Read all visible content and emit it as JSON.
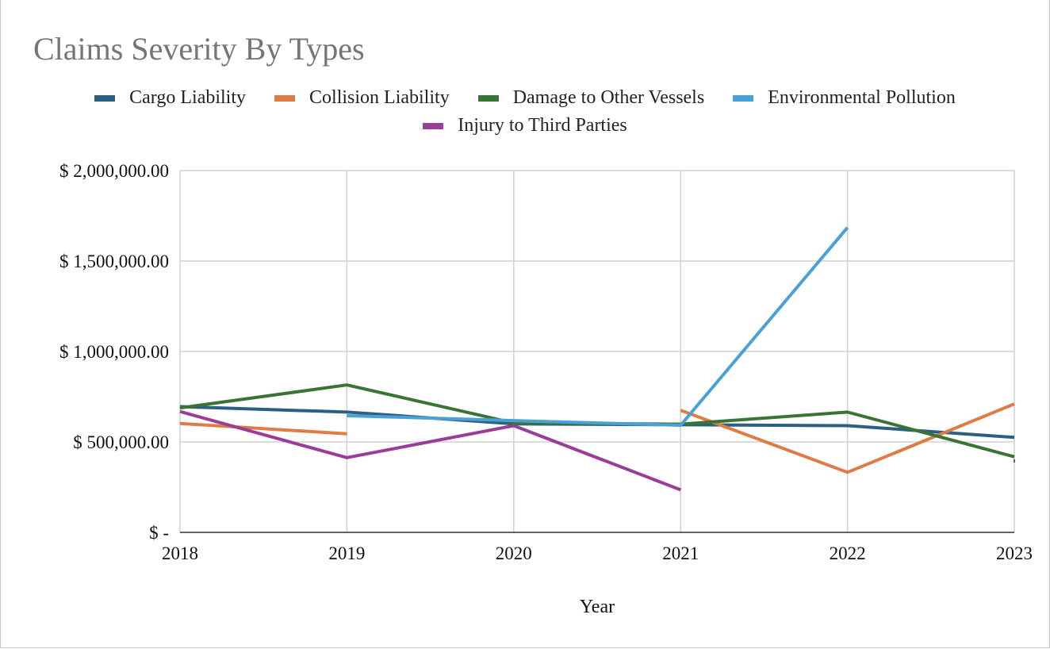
{
  "chart_data": {
    "type": "line",
    "title": "Claims Severity By Types",
    "xlabel": "Year",
    "ylabel": "",
    "categories": [
      "2018",
      "2019",
      "2020",
      "2021",
      "2022",
      "2023"
    ],
    "ylim": [
      0,
      2000000
    ],
    "y_ticks": [
      0,
      500000,
      1000000,
      1500000,
      2000000
    ],
    "y_tick_labels": [
      "$ -",
      "$ 500,000.00",
      "$ 1,000,000.00",
      "$ 1,500,000.00",
      "$ 2,000,000.00"
    ],
    "grid": true,
    "legend_position": "top",
    "series": [
      {
        "name": "Cargo Liability",
        "color": "#2b5f84",
        "values": [
          695000,
          665000,
          600000,
          595000,
          590000,
          525000
        ]
      },
      {
        "name": "Collision Liability",
        "color": "#e07b45",
        "values": [
          602000,
          545000,
          null,
          675000,
          332000,
          710000
        ]
      },
      {
        "name": "Damage to Other Vessels",
        "color": "#3a7434",
        "values": [
          688000,
          815000,
          605000,
          598000,
          665000,
          418000
        ]
      },
      {
        "name": "Environmental Pollution",
        "color": "#4aa1d6",
        "values": [
          null,
          645000,
          618000,
          592000,
          1685000,
          null
        ]
      },
      {
        "name": "Injury to Third Parties",
        "color": "#993d98",
        "values": [
          668000,
          413000,
          590000,
          235000,
          null,
          395000
        ]
      }
    ]
  }
}
